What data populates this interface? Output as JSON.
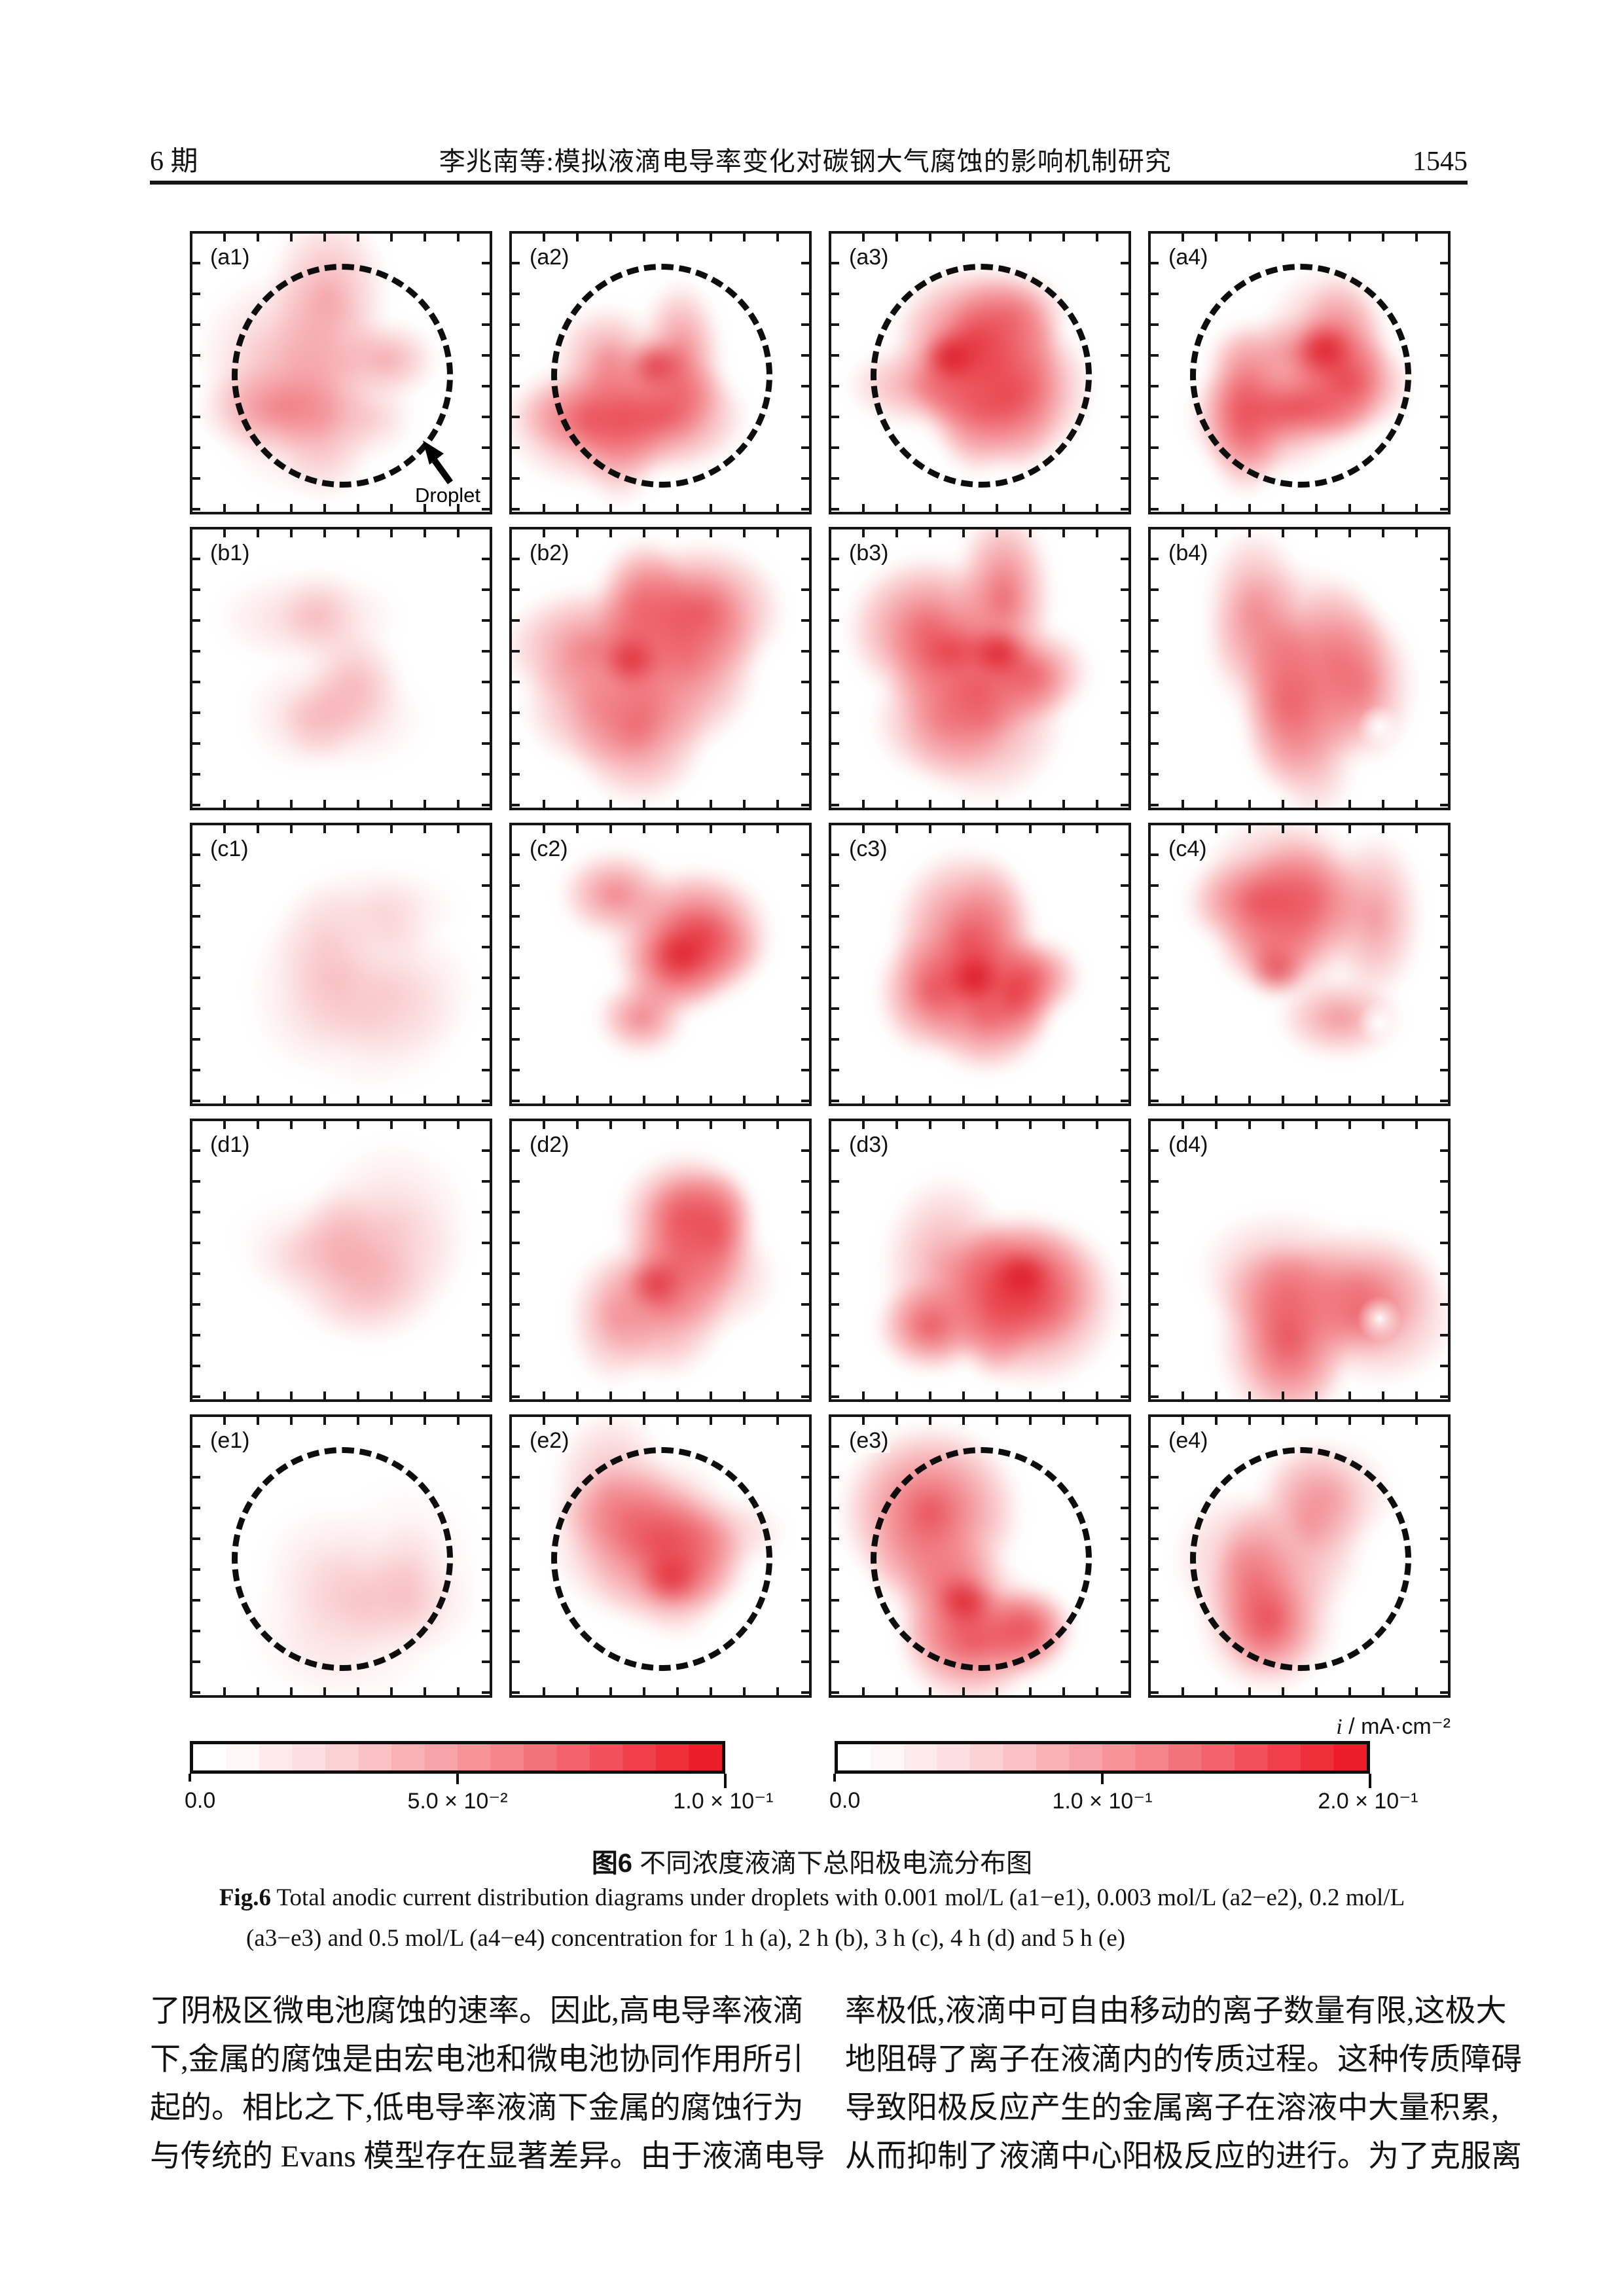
{
  "header": {
    "issue": "6 期",
    "running_title": "李兆南等:模拟液滴电导率变化对碳钢大气腐蚀的影响机制研究",
    "page_number": "1545"
  },
  "figure": {
    "droplet_annotation": "Droplet",
    "unit_label_symbol": "i",
    "unit_label_rest": " / mA·cm⁻²",
    "row_times_h": [
      1,
      2,
      3,
      4,
      5
    ],
    "col_concentrations_mol_L": [
      0.001,
      0.003,
      0.2,
      0.5
    ],
    "heat_colors": {
      "low": "#ffffff",
      "mid": "#f5a8ad",
      "high": "#ec1c28"
    },
    "panels": [
      {
        "id": "a1",
        "label": "(a1)",
        "intensity": 0.42,
        "circle": true
      },
      {
        "id": "a2",
        "label": "(a2)",
        "intensity": 0.78,
        "circle": true
      },
      {
        "id": "a3",
        "label": "(a3)",
        "intensity": 0.92,
        "circle": true
      },
      {
        "id": "a4",
        "label": "(a4)",
        "intensity": 0.85,
        "circle": true
      },
      {
        "id": "b1",
        "label": "(b1)",
        "intensity": 0.22,
        "circle": false
      },
      {
        "id": "b2",
        "label": "(b2)",
        "intensity": 0.74,
        "circle": false
      },
      {
        "id": "b3",
        "label": "(b3)",
        "intensity": 0.88,
        "circle": false
      },
      {
        "id": "b4",
        "label": "(b4)",
        "intensity": 0.58,
        "circle": false
      },
      {
        "id": "c1",
        "label": "(c1)",
        "intensity": 0.22,
        "circle": false
      },
      {
        "id": "c2",
        "label": "(c2)",
        "intensity": 0.72,
        "circle": false
      },
      {
        "id": "c3",
        "label": "(c3)",
        "intensity": 0.88,
        "circle": false
      },
      {
        "id": "c4",
        "label": "(c4)",
        "intensity": 0.62,
        "circle": false
      },
      {
        "id": "d1",
        "label": "(d1)",
        "intensity": 0.2,
        "circle": false
      },
      {
        "id": "d2",
        "label": "(d2)",
        "intensity": 0.7,
        "circle": false
      },
      {
        "id": "d3",
        "label": "(d3)",
        "intensity": 0.86,
        "circle": false
      },
      {
        "id": "d4",
        "label": "(d4)",
        "intensity": 0.6,
        "circle": false
      },
      {
        "id": "e1",
        "label": "(e1)",
        "intensity": 0.15,
        "circle": true
      },
      {
        "id": "e2",
        "label": "(e2)",
        "intensity": 0.62,
        "circle": true
      },
      {
        "id": "e3",
        "label": "(e3)",
        "intensity": 0.82,
        "circle": true
      },
      {
        "id": "e4",
        "label": "(e4)",
        "intensity": 0.55,
        "circle": true
      }
    ],
    "colorbars": [
      {
        "ticks": [
          "0.0",
          "5.0 × 10⁻²",
          "1.0 × 10⁻¹"
        ]
      },
      {
        "ticks": [
          "0.0",
          "1.0 × 10⁻¹",
          "2.0 × 10⁻¹"
        ]
      }
    ]
  },
  "captions": {
    "zh_prefix": "图6",
    "zh_text": " 不同浓度液滴下总阳极电流分布图",
    "en_prefix": "Fig.6",
    "en_line1_rest": " Total anodic current distribution diagrams under droplets with 0.001 mol/L (a1−e1), 0.003 mol/L (a2−e2), 0.2 mol/L",
    "en_line2": "(a3−e3) and 0.5 mol/L (a4−e4) concentration for 1 h (a), 2 h (b), 3 h (c), 4 h (d) and 5 h (e)"
  },
  "body": {
    "left_column_lines": [
      "了阴极区微电池腐蚀的速率。因此,高电导率液滴",
      "下,金属的腐蚀是由宏电池和微电池协同作用所引",
      "起的。相比之下,低电导率液滴下金属的腐蚀行为",
      "与传统的 Evans 模型存在显著差异。由于液滴电导"
    ],
    "right_column_lines": [
      "率极低,液滴中可自由移动的离子数量有限,这极大",
      "地阻碍了离子在液滴内的传质过程。这种传质障碍",
      "导致阳极反应产生的金属离子在溶液中大量积累,",
      "从而抑制了液滴中心阳极反应的进行。为了克服离"
    ]
  }
}
